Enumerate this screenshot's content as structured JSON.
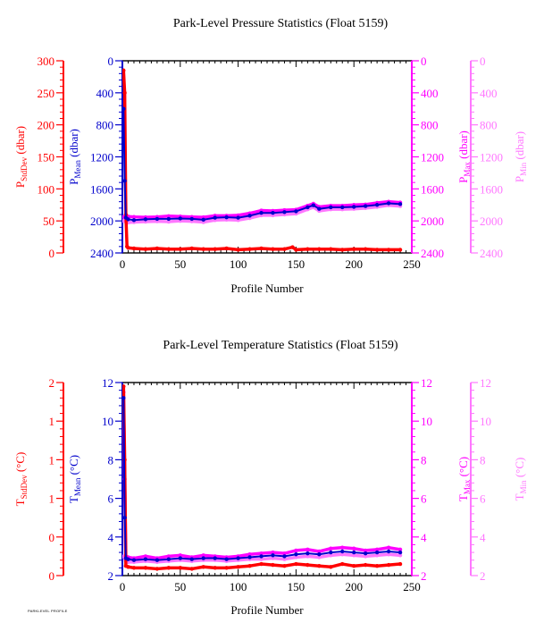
{
  "footer": {
    "text": "PARKLEVEL PROFILE"
  },
  "colors": {
    "stddev": "#ff0000",
    "mean": "#0000cc",
    "max": "#ff00ff",
    "min": "#ff77ff",
    "axis": "#000000"
  },
  "chart_data": [
    {
      "type": "line",
      "title": "Park-Level Pressure Statistics (Float 5159)",
      "xlabel": "Profile Number",
      "xlim": [
        0,
        250
      ],
      "xticks": [
        0,
        50,
        100,
        150,
        200,
        250
      ],
      "axes": {
        "stddev": {
          "label_main": "P",
          "label_sub": "StdDev",
          "label_unit": " (dbar)",
          "ylim": [
            0,
            300
          ],
          "ticks": [
            "0",
            "50",
            "100",
            "150",
            "200",
            "250",
            "300"
          ],
          "inverted": false
        },
        "mean": {
          "label_main": "P",
          "label_sub": "Mean",
          "label_unit": " (dbar)",
          "ylim": [
            2400,
            0
          ],
          "ticks": [
            "0",
            "400",
            "800",
            "1200",
            "1600",
            "2000",
            "2400"
          ],
          "inverted": true
        },
        "max": {
          "label_main": "P",
          "label_sub": "Max",
          "label_unit": " (dbar)",
          "ylim": [
            2400,
            0
          ],
          "ticks": [
            "0",
            "400",
            "800",
            "1200",
            "1600",
            "2000",
            "2400"
          ],
          "inverted": true
        },
        "min": {
          "label_main": "P",
          "label_sub": "Min",
          "label_unit": " (dbar)",
          "ylim": [
            2400,
            0
          ],
          "ticks": [
            "0",
            "400",
            "800",
            "1200",
            "1600",
            "2000",
            "2400"
          ],
          "inverted": true
        }
      },
      "series": [
        {
          "name": "StdDev",
          "axis": "stddev",
          "x": [
            1,
            2,
            3,
            4,
            5,
            10,
            20,
            30,
            40,
            50,
            60,
            70,
            80,
            90,
            100,
            110,
            120,
            130,
            140,
            147,
            150,
            160,
            170,
            180,
            190,
            200,
            210,
            220,
            230,
            240
          ],
          "y": [
            285,
            250,
            60,
            10,
            8,
            7,
            6,
            7,
            6,
            6,
            7,
            6,
            6,
            7,
            5,
            6,
            7,
            6,
            6,
            9,
            5,
            6,
            6,
            6,
            5,
            6,
            6,
            5,
            5,
            5
          ]
        },
        {
          "name": "Mean",
          "axis": "mean",
          "x": [
            1,
            2,
            3,
            5,
            10,
            20,
            30,
            40,
            50,
            60,
            70,
            80,
            90,
            100,
            110,
            120,
            130,
            140,
            150,
            160,
            165,
            170,
            180,
            190,
            200,
            210,
            220,
            230,
            240
          ],
          "y": [
            600,
            1500,
            1960,
            1980,
            1990,
            1980,
            1975,
            1975,
            1970,
            1975,
            1985,
            1960,
            1955,
            1960,
            1935,
            1900,
            1900,
            1890,
            1880,
            1830,
            1805,
            1850,
            1830,
            1830,
            1825,
            1815,
            1800,
            1780,
            1790
          ]
        },
        {
          "name": "Max",
          "axis": "max",
          "x": [
            1,
            3,
            5,
            10,
            20,
            30,
            40,
            50,
            60,
            70,
            80,
            90,
            100,
            110,
            120,
            130,
            140,
            150,
            160,
            165,
            170,
            180,
            190,
            200,
            210,
            220,
            230,
            240
          ],
          "y": [
            1950,
            1940,
            1945,
            1950,
            1955,
            1950,
            1940,
            1945,
            1950,
            1955,
            1935,
            1935,
            1930,
            1905,
            1870,
            1875,
            1865,
            1860,
            1810,
            1785,
            1825,
            1810,
            1810,
            1800,
            1795,
            1775,
            1760,
            1770
          ]
        },
        {
          "name": "Min",
          "axis": "min",
          "x": [
            1,
            3,
            5,
            10,
            20,
            30,
            40,
            50,
            60,
            70,
            80,
            90,
            100,
            110,
            120,
            130,
            140,
            150,
            160,
            165,
            170,
            180,
            190,
            200,
            210,
            220,
            230,
            240
          ],
          "y": [
            2000,
            2010,
            2020,
            2015,
            2010,
            2005,
            2010,
            2000,
            2005,
            2015,
            1990,
            1985,
            1990,
            1965,
            1930,
            1930,
            1920,
            1910,
            1855,
            1830,
            1875,
            1855,
            1855,
            1850,
            1840,
            1825,
            1805,
            1815
          ]
        }
      ]
    },
    {
      "type": "line",
      "title": "Park-Level Temperature Statistics (Float 5159)",
      "xlabel": "Profile Number",
      "xlim": [
        0,
        250
      ],
      "xticks": [
        0,
        50,
        100,
        150,
        200,
        250
      ],
      "axes": {
        "stddev": {
          "label_main": "T",
          "label_sub": "StdDev",
          "label_unit": " (°C)",
          "ylim": [
            0,
            2
          ],
          "ticks": [
            "0",
            "0",
            "1",
            "1",
            "1",
            "2"
          ],
          "inverted": false
        },
        "mean": {
          "label_main": "T",
          "label_sub": "Mean",
          "label_unit": " (°C)",
          "ylim": [
            2,
            12
          ],
          "ticks": [
            "2",
            "4",
            "6",
            "8",
            "10",
            "12"
          ],
          "inverted": false
        },
        "max": {
          "label_main": "T",
          "label_sub": "Max",
          "label_unit": " (°C)",
          "ylim": [
            2,
            12
          ],
          "ticks": [
            "2",
            "4",
            "6",
            "8",
            "10",
            "12"
          ],
          "inverted": false
        },
        "min": {
          "label_main": "T",
          "label_sub": "Min",
          "label_unit": " (°C)",
          "ylim": [
            2,
            12
          ],
          "ticks": [
            "2",
            "4",
            "6",
            "8",
            "10",
            "12"
          ],
          "inverted": false
        }
      },
      "series": [
        {
          "name": "StdDev",
          "axis": "stddev",
          "x": [
            1,
            2,
            3,
            5,
            10,
            20,
            30,
            40,
            50,
            60,
            70,
            80,
            90,
            100,
            110,
            120,
            130,
            140,
            150,
            160,
            170,
            180,
            190,
            200,
            210,
            220,
            230,
            240
          ],
          "y": [
            1.96,
            1.2,
            0.1,
            0.09,
            0.08,
            0.08,
            0.07,
            0.08,
            0.08,
            0.07,
            0.09,
            0.08,
            0.08,
            0.09,
            0.1,
            0.12,
            0.11,
            0.1,
            0.12,
            0.11,
            0.1,
            0.09,
            0.12,
            0.1,
            0.11,
            0.1,
            0.11,
            0.12
          ]
        },
        {
          "name": "Mean",
          "axis": "mean",
          "x": [
            1,
            2,
            3,
            5,
            10,
            20,
            30,
            40,
            50,
            60,
            70,
            80,
            90,
            100,
            110,
            120,
            130,
            140,
            150,
            160,
            170,
            180,
            190,
            200,
            210,
            220,
            230,
            240
          ],
          "y": [
            11.2,
            5.0,
            2.9,
            2.85,
            2.8,
            2.85,
            2.8,
            2.85,
            2.9,
            2.85,
            2.9,
            2.9,
            2.85,
            2.9,
            2.95,
            3.0,
            3.05,
            3.0,
            3.1,
            3.15,
            3.1,
            3.2,
            3.25,
            3.2,
            3.15,
            3.2,
            3.25,
            3.2
          ]
        },
        {
          "name": "Max",
          "axis": "max",
          "x": [
            1,
            2,
            3,
            5,
            10,
            20,
            30,
            40,
            50,
            60,
            70,
            80,
            90,
            100,
            110,
            120,
            130,
            140,
            150,
            160,
            170,
            180,
            190,
            200,
            210,
            220,
            230,
            240
          ],
          "y": [
            11.5,
            7.0,
            3.0,
            2.95,
            2.9,
            3.0,
            2.9,
            3.0,
            3.05,
            2.95,
            3.05,
            3.0,
            2.95,
            3.0,
            3.1,
            3.15,
            3.2,
            3.15,
            3.3,
            3.35,
            3.25,
            3.4,
            3.45,
            3.4,
            3.3,
            3.35,
            3.45,
            3.35
          ]
        },
        {
          "name": "Min",
          "axis": "min",
          "x": [
            1,
            2,
            3,
            5,
            10,
            20,
            30,
            40,
            50,
            60,
            70,
            80,
            90,
            100,
            110,
            120,
            130,
            140,
            150,
            160,
            170,
            180,
            190,
            200,
            210,
            220,
            230,
            240
          ],
          "y": [
            3.0,
            2.9,
            2.75,
            2.7,
            2.7,
            2.75,
            2.7,
            2.75,
            2.8,
            2.75,
            2.8,
            2.8,
            2.75,
            2.8,
            2.85,
            2.85,
            2.9,
            2.85,
            2.95,
            3.0,
            2.95,
            3.05,
            3.1,
            3.05,
            3.0,
            3.05,
            3.1,
            3.05
          ]
        }
      ]
    }
  ]
}
